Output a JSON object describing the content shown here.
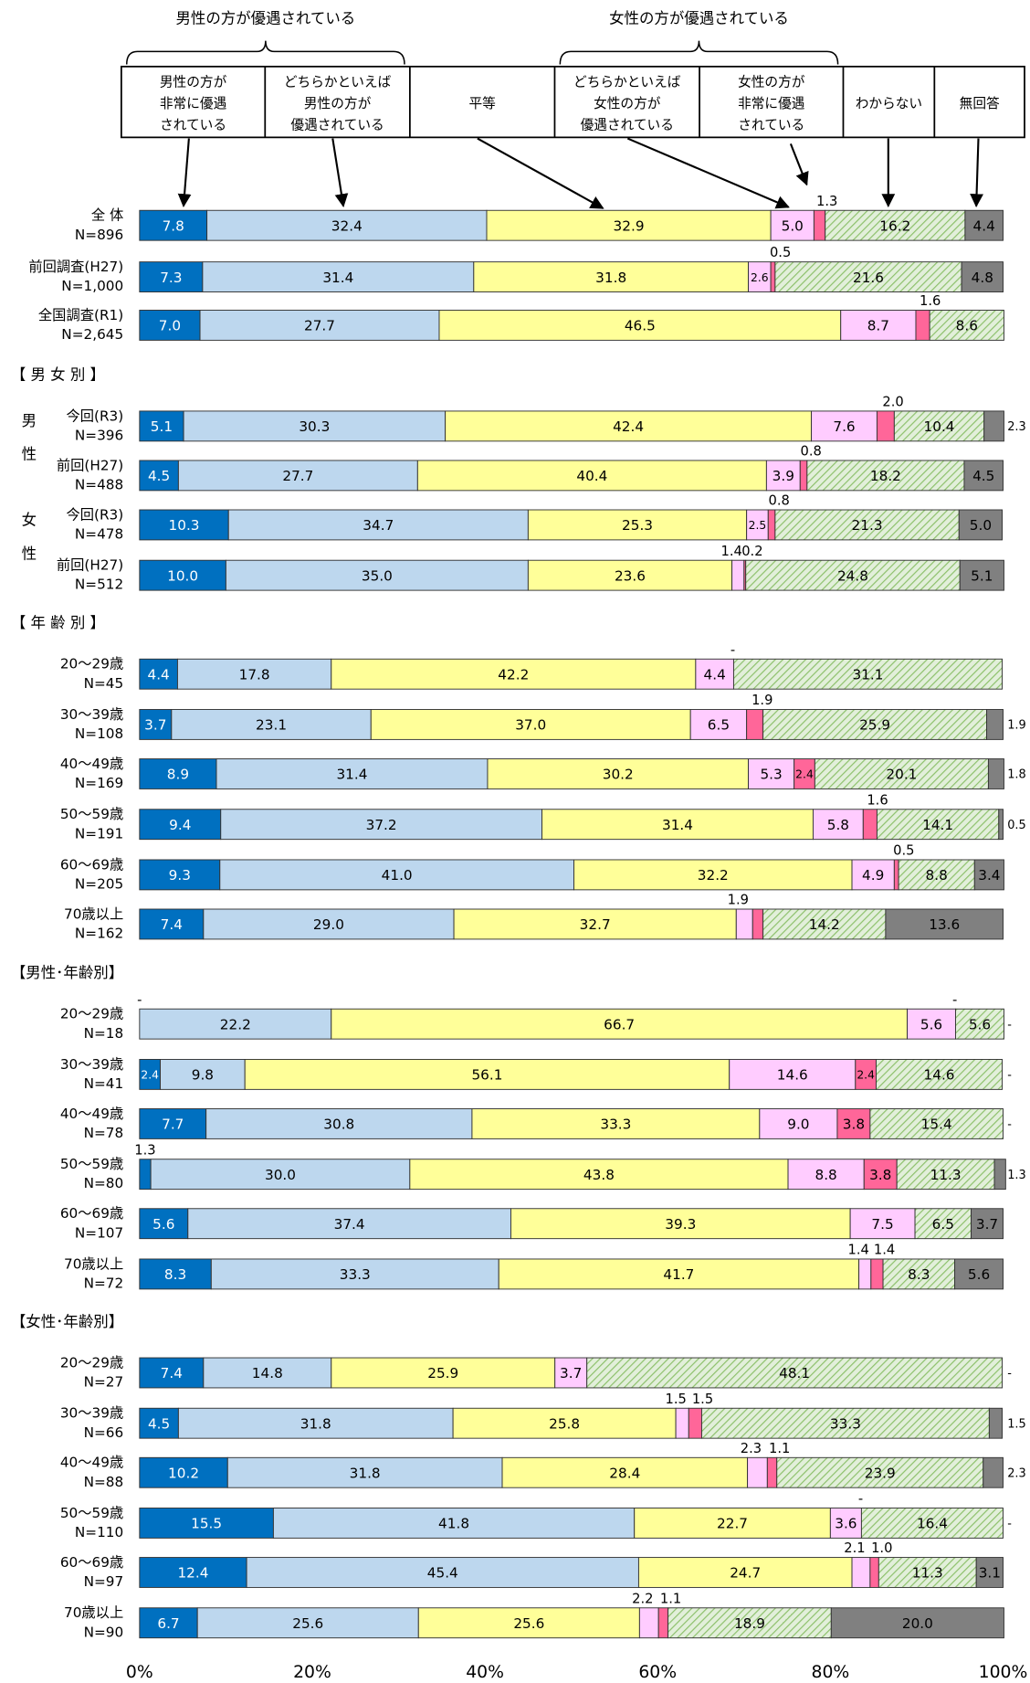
{
  "chart_data": {
    "type": "stacked_bar_horizontal",
    "brackets": [
      {
        "label": "男性の方が優遇されている"
      },
      {
        "label": "女性の方が優遇されている"
      }
    ],
    "categories": [
      "全 体",
      "前回調査(H27)",
      "全国調査(R1)",
      "今回(R3)",
      "前回(H27)",
      "今回(R3)",
      "前回(H27)",
      "20～29歳",
      "30～39歳",
      "40～49歳",
      "50～59歳",
      "60～69歳",
      "70歳以上",
      "20～29歳",
      "30～39歳",
      "40～49歳",
      "50～59歳",
      "60～69歳",
      "70歳以上",
      "20～29歳",
      "30～39歳",
      "40～49歳",
      "50～59歳",
      "60～69歳",
      "70歳以上"
    ],
    "n": [
      "N=896",
      "N=1,000",
      "N=2,645",
      "N=396",
      "N=488",
      "N=478",
      "N=512",
      "N=45",
      "N=108",
      "N=169",
      "N=191",
      "N=205",
      "N=162",
      "N=18",
      "N=41",
      "N=78",
      "N=80",
      "N=107",
      "N=72",
      "N=27",
      "N=66",
      "N=88",
      "N=110",
      "N=97",
      "N=90"
    ],
    "groups": [
      {
        "label": "【 男 女 別 】"
      },
      {
        "label": "【 年 齢 別 】"
      },
      {
        "label": "【男性･年齢別】"
      },
      {
        "label": "【女性･年齢別】"
      }
    ],
    "side_labels": [
      {
        "chars": [
          "男",
          "性"
        ]
      },
      {
        "chars": [
          "女",
          "性"
        ]
      }
    ],
    "series": [
      {
        "name": [
          "男性の方が",
          "非常に優遇",
          "されている"
        ],
        "color": "#0070c0",
        "label_color": "#ffffff",
        "values": [
          7.8,
          7.3,
          7.0,
          5.1,
          4.5,
          10.3,
          10.0,
          4.4,
          3.7,
          8.9,
          9.4,
          9.3,
          7.4,
          0,
          2.4,
          7.7,
          1.3,
          5.6,
          8.3,
          7.4,
          4.5,
          10.2,
          15.5,
          12.4,
          6.7
        ],
        "value_labels": [
          "7.8",
          "7.3",
          "7.0",
          "5.1",
          "4.5",
          "10.3",
          "10.0",
          "4.4",
          "3.7",
          "8.9",
          "9.4",
          "9.3",
          "7.4",
          "-",
          "2.4",
          "7.7",
          "1.3",
          "5.6",
          "8.3",
          "7.4",
          "4.5",
          "10.2",
          "15.5",
          "12.4",
          "6.7"
        ]
      },
      {
        "name": [
          "どちらかといえば",
          "男性の方が",
          "優遇されている"
        ],
        "color": "#bdd7ee",
        "label_color": "#000000",
        "values": [
          32.4,
          31.4,
          27.7,
          30.3,
          27.7,
          34.7,
          35.0,
          17.8,
          23.1,
          31.4,
          37.2,
          41.0,
          29.0,
          22.2,
          9.8,
          30.8,
          30.0,
          37.4,
          33.3,
          14.8,
          31.8,
          31.8,
          41.8,
          45.4,
          25.6
        ],
        "value_labels": [
          "32.4",
          "31.4",
          "27.7",
          "30.3",
          "27.7",
          "34.7",
          "35.0",
          "17.8",
          "23.1",
          "31.4",
          "37.2",
          "41.0",
          "29.0",
          "22.2",
          "9.8",
          "30.8",
          "30.0",
          "37.4",
          "33.3",
          "14.8",
          "31.8",
          "31.8",
          "41.8",
          "45.4",
          "25.6"
        ]
      },
      {
        "name": [
          "平等"
        ],
        "color": "#ffff99",
        "label_color": "#000000",
        "values": [
          32.9,
          31.8,
          46.5,
          42.4,
          40.4,
          25.3,
          23.6,
          42.2,
          37.0,
          30.2,
          31.4,
          32.2,
          32.7,
          66.7,
          56.1,
          33.3,
          43.8,
          39.3,
          41.7,
          25.9,
          25.8,
          28.4,
          22.7,
          24.7,
          25.6
        ],
        "value_labels": [
          "32.9",
          "31.8",
          "46.5",
          "42.4",
          "40.4",
          "25.3",
          "23.6",
          "42.2",
          "37.0",
          "30.2",
          "31.4",
          "32.2",
          "32.7",
          "66.7",
          "56.1",
          "33.3",
          "43.8",
          "39.3",
          "41.7",
          "25.9",
          "25.8",
          "28.4",
          "22.7",
          "24.7",
          "25.6"
        ]
      },
      {
        "name": [
          "どちらかといえば",
          "女性の方が",
          "優遇されている"
        ],
        "color": "#ffccff",
        "label_color": "#000000",
        "values": [
          5.0,
          2.6,
          8.7,
          7.6,
          3.9,
          2.5,
          1.4,
          4.4,
          6.5,
          5.3,
          5.8,
          4.9,
          1.9,
          5.6,
          14.6,
          9.0,
          8.8,
          7.5,
          1.4,
          3.7,
          1.5,
          2.3,
          3.6,
          2.1,
          2.2
        ],
        "value_labels": [
          "5.0",
          "2.6",
          "8.7",
          "7.6",
          "3.9",
          "2.5",
          "1.4",
          "4.4",
          "6.5",
          "5.3",
          "5.8",
          "4.9",
          "1.9",
          "5.6",
          "14.6",
          "9.0",
          "8.8",
          "7.5",
          "1.4",
          "3.7",
          "1.5",
          "2.3",
          "3.6",
          "2.1",
          "2.2"
        ]
      },
      {
        "name": [
          "女性の方が",
          "非常に優遇",
          "されている"
        ],
        "color": "#ff6699",
        "label_color": "#000000",
        "values": [
          1.3,
          0.5,
          1.6,
          2.0,
          0.8,
          0.8,
          0.2,
          0,
          1.9,
          2.4,
          1.6,
          0.5,
          1.2,
          0,
          2.4,
          3.8,
          3.8,
          null,
          1.4,
          null,
          1.5,
          1.1,
          0,
          1.0,
          1.1
        ],
        "value_labels": [
          "1.3",
          "0.5",
          "1.6",
          "2.0",
          "0.8",
          "0.8",
          "0.2",
          "-",
          "1.9",
          "2.4",
          "1.6",
          "0.5",
          null,
          "-",
          "2.4",
          "3.8",
          "3.8",
          null,
          "1.4",
          null,
          "1.5",
          "1.1",
          "-",
          "1.0",
          "1.1"
        ]
      },
      {
        "name": [
          "わからない"
        ],
        "color": "#e2efda",
        "hatch": true,
        "hatch_color": "#8cc06a",
        "label_color": "#000000",
        "values": [
          16.2,
          21.6,
          8.6,
          10.4,
          18.2,
          21.3,
          24.8,
          31.1,
          25.9,
          20.1,
          14.1,
          8.8,
          14.2,
          5.6,
          14.6,
          15.4,
          11.3,
          6.5,
          8.3,
          48.1,
          33.3,
          23.9,
          16.4,
          11.3,
          18.9
        ],
        "value_labels": [
          "16.2",
          "21.6",
          "8.6",
          "10.4",
          "18.2",
          "21.3",
          "24.8",
          "31.1",
          "25.9",
          "20.1",
          "14.1",
          "8.8",
          "14.2",
          "5.6",
          "14.6",
          "15.4",
          "11.3",
          "6.5",
          "8.3",
          "48.1",
          "33.3",
          "23.9",
          "16.4",
          "11.3",
          "18.9"
        ]
      },
      {
        "name": [
          "無回答"
        ],
        "color": "#808080",
        "label_color": "#000000",
        "values": [
          4.4,
          4.8,
          null,
          2.3,
          4.5,
          5.0,
          5.1,
          null,
          1.9,
          1.8,
          0.5,
          3.4,
          13.6,
          0,
          0,
          0,
          1.3,
          3.7,
          5.6,
          0,
          1.5,
          2.3,
          0,
          3.1,
          20.0
        ],
        "value_labels": [
          "4.4",
          "4.8",
          null,
          "2.3",
          "4.5",
          "5.0",
          "5.1",
          null,
          "1.9",
          "1.8",
          "0.5",
          "3.4",
          "13.6",
          "-",
          "-",
          "-",
          "1.3",
          "3.7",
          "5.6",
          "-",
          "1.5",
          "2.3",
          "-",
          "3.1",
          "20.0"
        ]
      }
    ],
    "xlim": [
      0,
      100
    ],
    "xticks": [
      {
        "value": 0,
        "label": "0%"
      },
      {
        "value": 20,
        "label": "20%"
      },
      {
        "value": 40,
        "label": "40%"
      },
      {
        "value": 60,
        "label": "60%"
      },
      {
        "value": 80,
        "label": "80%"
      },
      {
        "value": 100,
        "label": "100%"
      }
    ]
  }
}
